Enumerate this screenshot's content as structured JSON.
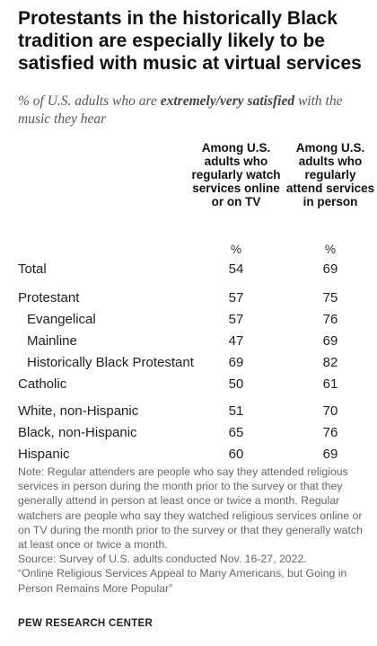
{
  "title": "Protestants in the historically Black tradition are especially likely to be satisfied with music at virtual services",
  "subtitle_pre": "% of U.S. adults who are ",
  "subtitle_em": "extremely/very satisfied",
  "subtitle_post": " with the music they hear",
  "chart_data": {
    "type": "table",
    "title": "Protestants in the historically Black tradition are especially likely to be satisfied with music at virtual services",
    "columns": [
      {
        "name": "Among U.S. adults who regularly watch services online or on TV",
        "unit": "%"
      },
      {
        "name": "Among U.S. adults who regularly attend services in person",
        "unit": "%"
      }
    ],
    "rows": [
      {
        "label": "Total",
        "values": [
          54,
          69
        ]
      },
      {
        "label": "Protestant",
        "values": [
          57,
          75
        ]
      },
      {
        "label": "Evangelical",
        "values": [
          57,
          76
        ]
      },
      {
        "label": "Mainline",
        "values": [
          47,
          69
        ]
      },
      {
        "label": "Historically Black Protestant",
        "values": [
          69,
          82
        ]
      },
      {
        "label": "Catholic",
        "values": [
          50,
          61
        ]
      },
      {
        "label": "White, non-Hispanic",
        "values": [
          51,
          70
        ]
      },
      {
        "label": "Black, non-Hispanic",
        "values": [
          65,
          76
        ]
      },
      {
        "label": "Hispanic",
        "values": [
          60,
          69
        ]
      }
    ]
  },
  "note": "Note: Regular attenders are people who say they attended religious services in person during the month prior to the survey or that they generally attend in person at least once or twice a month. Regular watchers are people who say they watched religious services online or on TV during the month prior to the survey or that they generally watch at least once or twice a month.",
  "source": "Source: Survey of U.S. adults conducted Nov. 16-27, 2022.",
  "report": "“Online Religious Services Appeal to Many Americans, but Going in Person Remains More Popular”",
  "brand": "PEW RESEARCH CENTER"
}
